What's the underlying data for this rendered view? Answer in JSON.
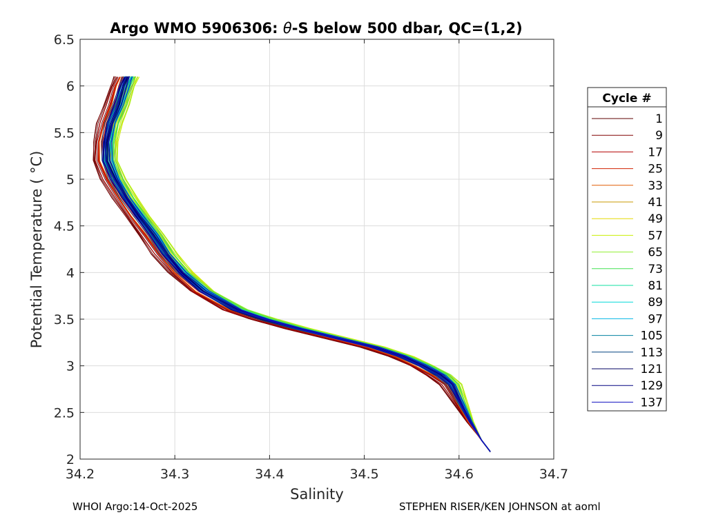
{
  "chart_data": {
    "type": "line",
    "title": "Argo WMO 5906306: θ-S below 500 dbar,  QC=(1,2)",
    "title_parts": {
      "prefix": "Argo WMO 5906306: ",
      "theta": "θ",
      "suffix": "-S below 500 dbar,  QC=(1,2)"
    },
    "xlabel": "Salinity",
    "ylabel": "Potential Temperature ( °C)",
    "xlim": [
      34.2,
      34.7
    ],
    "ylim": [
      2,
      6.5
    ],
    "xticks": [
      "34.2",
      "34.3",
      "34.4",
      "34.5",
      "34.6",
      "34.7"
    ],
    "yticks": [
      "2",
      "2.5",
      "3",
      "3.5",
      "4",
      "4.5",
      "5",
      "5.5",
      "6",
      "6.5"
    ],
    "grid": true,
    "legend_placement": "right, outside",
    "legend_title": "Cycle #",
    "series": [
      {
        "name": "1",
        "color": "#5c0000",
        "offset": -0.012
      },
      {
        "name": "9",
        "color": "#800000",
        "offset": -0.01
      },
      {
        "name": "17",
        "color": "#b30000",
        "offset": -0.008
      },
      {
        "name": "25",
        "color": "#d02000",
        "offset": -0.006
      },
      {
        "name": "33",
        "color": "#e05a00",
        "offset": -0.003
      },
      {
        "name": "41",
        "color": "#c89a00",
        "offset": 0.006
      },
      {
        "name": "49",
        "color": "#e6d800",
        "offset": 0.009
      },
      {
        "name": "57",
        "color": "#c8ee00",
        "offset": 0.008
      },
      {
        "name": "65",
        "color": "#90f030",
        "offset": 0.007
      },
      {
        "name": "73",
        "color": "#40e050",
        "offset": 0.006
      },
      {
        "name": "81",
        "color": "#10e0a0",
        "offset": 0.004
      },
      {
        "name": "89",
        "color": "#00d8d8",
        "offset": 0.002
      },
      {
        "name": "97",
        "color": "#00b4e6",
        "offset": 0.001
      },
      {
        "name": "105",
        "color": "#0080a0",
        "offset": 0.0
      },
      {
        "name": "113",
        "color": "#004080",
        "offset": -0.001
      },
      {
        "name": "121",
        "color": "#000060",
        "offset": -0.001
      },
      {
        "name": "129",
        "color": "#000080",
        "offset": 0.0
      },
      {
        "name": "137",
        "color": "#1010c0",
        "offset": 0.001
      }
    ],
    "base_curve": {
      "theta": [
        6.1,
        6.0,
        5.8,
        5.6,
        5.4,
        5.2,
        5.0,
        4.8,
        4.6,
        4.4,
        4.2,
        4.0,
        3.8,
        3.6,
        3.5,
        3.4,
        3.3,
        3.2,
        3.1,
        3.0,
        2.9,
        2.8,
        2.6,
        2.4,
        2.2,
        2.08
      ],
      "salinity": [
        34.25,
        34.246,
        34.24,
        34.232,
        34.228,
        34.228,
        34.236,
        34.248,
        34.262,
        34.277,
        34.29,
        34.307,
        34.33,
        34.365,
        34.395,
        34.43,
        34.47,
        34.51,
        34.54,
        34.562,
        34.58,
        34.592,
        34.602,
        34.612,
        34.624,
        34.633
      ]
    }
  },
  "footer": {
    "left": "WHOI Argo:14-Oct-2025",
    "right": "STEPHEN RISER/KEN JOHNSON at aoml"
  }
}
